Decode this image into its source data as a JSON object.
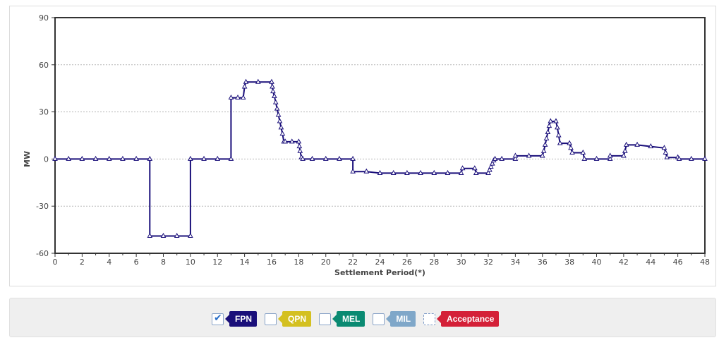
{
  "chart_data": {
    "type": "line",
    "title": "",
    "xlabel": "Settlement Period(*)",
    "ylabel": "MW",
    "xlim": [
      0,
      48
    ],
    "ylim": [
      -60,
      90
    ],
    "x_ticks": [
      0,
      2,
      4,
      6,
      8,
      10,
      12,
      14,
      16,
      18,
      20,
      22,
      24,
      26,
      28,
      30,
      32,
      34,
      36,
      38,
      40,
      42,
      44,
      46,
      48
    ],
    "y_ticks": [
      90,
      60,
      30,
      0,
      -30,
      -60
    ],
    "grid": "horizontal dotted",
    "series": [
      {
        "name": "FPN",
        "color": "#1a0f7a",
        "marker": "triangle",
        "points": [
          [
            0,
            0
          ],
          [
            1,
            0
          ],
          [
            2,
            0
          ],
          [
            3,
            0
          ],
          [
            4,
            0
          ],
          [
            5,
            0
          ],
          [
            6,
            0
          ],
          [
            7,
            0
          ],
          [
            7,
            -49
          ],
          [
            8,
            -49
          ],
          [
            9,
            -49
          ],
          [
            10,
            -49
          ],
          [
            10,
            0
          ],
          [
            11,
            0
          ],
          [
            12,
            0
          ],
          [
            13,
            0
          ],
          [
            13,
            39
          ],
          [
            13.5,
            39
          ],
          [
            13.9,
            39
          ],
          [
            14,
            46
          ],
          [
            14.1,
            49
          ],
          [
            15,
            49
          ],
          [
            16,
            49
          ],
          [
            16.05,
            46
          ],
          [
            16.1,
            43
          ],
          [
            16.2,
            40
          ],
          [
            16.3,
            36
          ],
          [
            16.4,
            32
          ],
          [
            16.5,
            28
          ],
          [
            16.6,
            24
          ],
          [
            16.7,
            20
          ],
          [
            16.8,
            16
          ],
          [
            16.9,
            11
          ],
          [
            17,
            11
          ],
          [
            17.5,
            11
          ],
          [
            18,
            11
          ],
          [
            18.05,
            8
          ],
          [
            18.1,
            5
          ],
          [
            18.2,
            1
          ],
          [
            18.3,
            0
          ],
          [
            19,
            0
          ],
          [
            20,
            0
          ],
          [
            21,
            0
          ],
          [
            22,
            0
          ],
          [
            22,
            -8
          ],
          [
            23,
            -8
          ],
          [
            24,
            -9
          ],
          [
            25,
            -9
          ],
          [
            26,
            -9
          ],
          [
            27,
            -9
          ],
          [
            28,
            -9
          ],
          [
            29,
            -9
          ],
          [
            30,
            -9
          ],
          [
            30.1,
            -6
          ],
          [
            31,
            -6
          ],
          [
            31.1,
            -9
          ],
          [
            32,
            -9
          ],
          [
            32.1,
            -7
          ],
          [
            32.2,
            -5
          ],
          [
            32.3,
            -3
          ],
          [
            32.4,
            -1
          ],
          [
            32.5,
            0
          ],
          [
            33,
            0
          ],
          [
            34,
            0
          ],
          [
            34,
            2
          ],
          [
            35,
            2
          ],
          [
            36,
            2
          ],
          [
            36.1,
            5
          ],
          [
            36.2,
            9
          ],
          [
            36.3,
            13
          ],
          [
            36.4,
            17
          ],
          [
            36.5,
            21
          ],
          [
            36.6,
            24
          ],
          [
            37,
            24
          ],
          [
            37.1,
            20
          ],
          [
            37.2,
            15
          ],
          [
            37.3,
            10
          ],
          [
            38,
            10
          ],
          [
            38.1,
            7
          ],
          [
            38.2,
            4
          ],
          [
            39,
            4
          ],
          [
            39.1,
            0
          ],
          [
            40,
            0
          ],
          [
            41,
            0
          ],
          [
            41,
            2
          ],
          [
            42,
            2
          ],
          [
            42.1,
            5
          ],
          [
            42.2,
            9
          ],
          [
            43,
            9
          ],
          [
            44,
            8
          ],
          [
            45,
            7
          ],
          [
            45.1,
            4
          ],
          [
            45.2,
            1
          ],
          [
            46,
            1
          ],
          [
            46.1,
            0
          ],
          [
            47,
            0
          ],
          [
            48,
            0
          ]
        ]
      }
    ]
  },
  "legend": {
    "items": [
      {
        "label": "FPN",
        "checked": true,
        "color": "#1a0f7a"
      },
      {
        "label": "QPN",
        "checked": false,
        "color": "#d4c020"
      },
      {
        "label": "MEL",
        "checked": false,
        "color": "#0a8a72"
      },
      {
        "label": "MIL",
        "checked": false,
        "color": "#7fa7c9"
      },
      {
        "label": "Acceptance",
        "checked": false,
        "color": "#d42038"
      }
    ]
  }
}
